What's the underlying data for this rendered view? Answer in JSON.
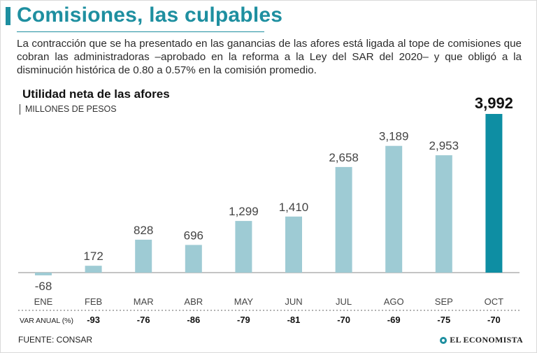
{
  "header": {
    "title": "Comisiones, las culpables",
    "description": "La contracción que se ha presentado en las ganancias de las afores está ligada al tope de comisiones que cobran las administradoras –aprobado en la reforma a la Ley del SAR del 2020– y que obligó a la disminución histórica de 0.80 a 0.57% en la comisión promedio."
  },
  "chart_data": {
    "type": "bar",
    "title": "Utilidad neta de las afores",
    "subtitle": "MILLONES DE PESOS",
    "categories": [
      "ENE",
      "FEB",
      "MAR",
      "ABR",
      "MAY",
      "JUN",
      "JUL",
      "AGO",
      "SEP",
      "OCT"
    ],
    "values": [
      -68,
      172,
      828,
      696,
      1299,
      1410,
      2658,
      3189,
      2953,
      3992
    ],
    "value_labels": [
      "-68",
      "172",
      "828",
      "696",
      "1,299",
      "1,410",
      "2,658",
      "3,189",
      "2,953",
      "3,992"
    ],
    "highlight_index": 9,
    "ylim": [
      -100,
      4000
    ],
    "colors": {
      "bar": "#9ecbd4",
      "highlight": "#0e8ea3",
      "axis": "#888888"
    },
    "var_anual": {
      "label": "VAR ANUAL (%)",
      "values": [
        "-93",
        "-76",
        "-86",
        "-79",
        "-81",
        "-70",
        "-69",
        "-75",
        "-70"
      ]
    }
  },
  "footer": {
    "source": "FUENTE: CONSAR",
    "brand": "EL ECONOMISTA"
  }
}
